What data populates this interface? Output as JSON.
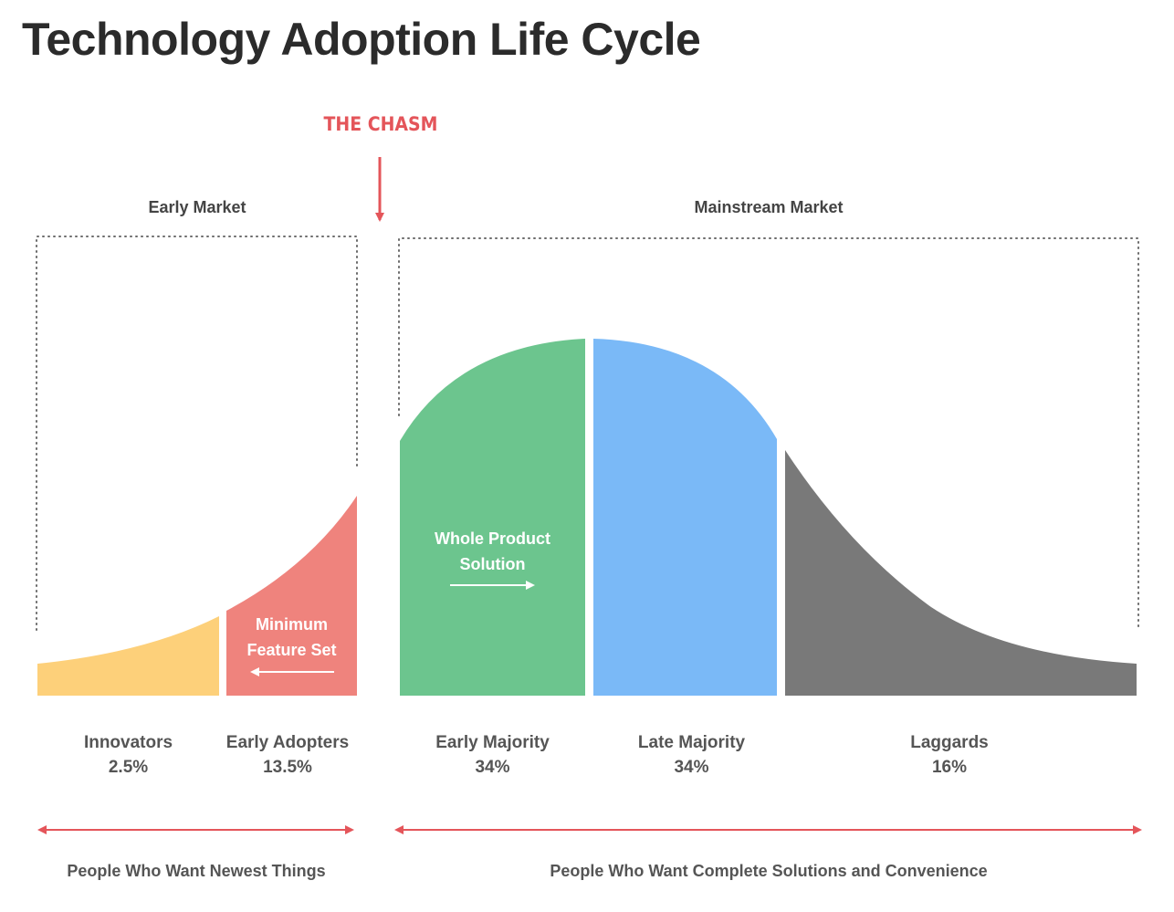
{
  "title": "Technology Adoption Life Cycle",
  "chasm_label": "THE CHASM",
  "markets": {
    "early": "Early Market",
    "mainstream": "Mainstream Market"
  },
  "segments": [
    {
      "name": "Innovators",
      "share": "2.5%",
      "color": "#fdd07a"
    },
    {
      "name": "Early Adopters",
      "share": "13.5%",
      "color": "#ef837d"
    },
    {
      "name": "Early Majority",
      "share": "34%",
      "color": "#6cc58e"
    },
    {
      "name": "Late Majority",
      "share": "34%",
      "color": "#7ab9f7"
    },
    {
      "name": "Laggards",
      "share": "16%",
      "color": "#797979"
    }
  ],
  "notes": {
    "minimum_feature_set": [
      "Minimum",
      "Feature Set"
    ],
    "whole_product_solution": [
      "Whole Product",
      "Solution"
    ]
  },
  "bottom": {
    "left": "People Who Want Newest Things",
    "right": "People Who Want Complete Solutions and Convenience"
  },
  "colors": {
    "accent": "#e4555a",
    "title": "#2b2b2b",
    "text": "#555555"
  }
}
